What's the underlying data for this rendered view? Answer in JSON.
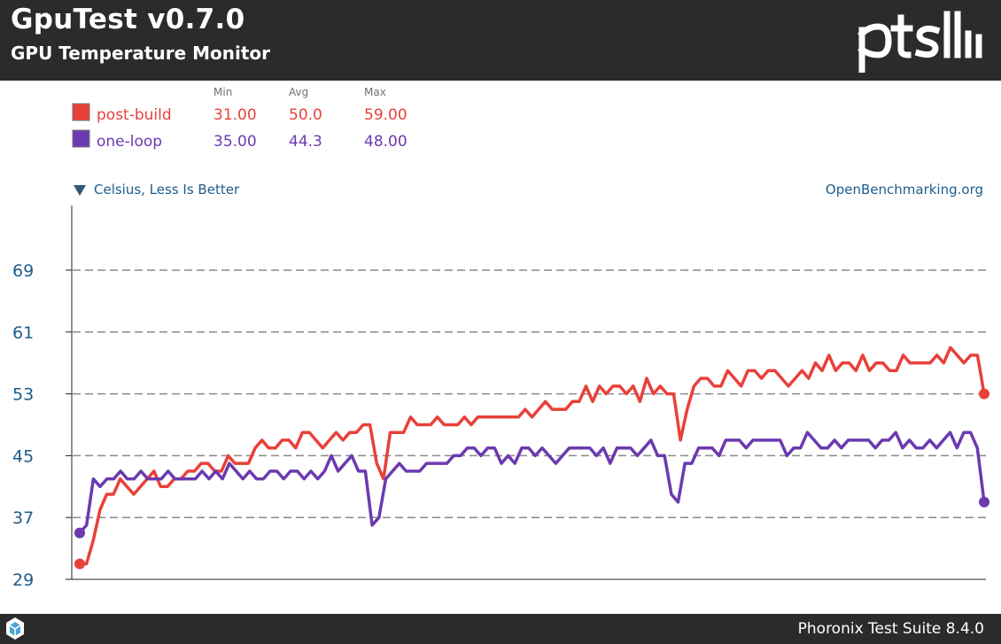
{
  "header": {
    "title": "GpuTest v0.7.0",
    "subtitle": "GPU Temperature Monitor",
    "logo_text": "ptsh"
  },
  "footer": {
    "text": "Phoronix Test Suite 8.4.0"
  },
  "legend": {
    "columns": [
      "Min",
      "Avg",
      "Max"
    ],
    "rows": [
      {
        "name": "post-build",
        "color": "#e8413a",
        "min": "31.00",
        "avg": "50.0",
        "max": "59.00"
      },
      {
        "name": "one-loop",
        "color": "#6b3aaf",
        "min": "35.00",
        "avg": "44.3",
        "max": "48.00"
      }
    ]
  },
  "chart_data": {
    "type": "line",
    "ylabel": "Celsius, Less Is Better",
    "source": "OpenBenchmarking.org",
    "yticks": [
      29,
      37,
      45,
      53,
      61,
      69
    ],
    "ylim": [
      29,
      69
    ],
    "grid": true,
    "legend_position": "top-left",
    "series": [
      {
        "name": "post-build",
        "color": "#e8413a",
        "values": [
          31,
          31,
          34,
          38,
          40,
          40,
          42,
          41,
          40,
          41,
          42,
          43,
          41,
          41,
          42,
          42,
          43,
          43,
          44,
          44,
          43,
          43,
          45,
          44,
          44,
          44,
          46,
          47,
          46,
          46,
          47,
          47,
          46,
          48,
          48,
          47,
          46,
          47,
          48,
          47,
          48,
          48,
          49,
          49,
          44,
          42,
          48,
          48,
          48,
          50,
          49,
          49,
          49,
          50,
          49,
          49,
          49,
          50,
          49,
          50,
          50,
          50,
          50,
          50,
          50,
          50,
          51,
          50,
          51,
          52,
          51,
          51,
          51,
          52,
          52,
          54,
          52,
          54,
          53,
          54,
          54,
          53,
          54,
          52,
          55,
          53,
          54,
          53,
          53,
          47,
          51,
          54,
          55,
          55,
          54,
          54,
          56,
          55,
          54,
          56,
          56,
          55,
          56,
          56,
          55,
          54,
          55,
          56,
          55,
          57,
          56,
          58,
          56,
          57,
          57,
          56,
          58,
          56,
          57,
          57,
          56,
          56,
          58,
          57,
          57,
          57,
          57,
          58,
          57,
          59,
          58,
          57,
          58,
          58,
          53
        ]
      },
      {
        "name": "one-loop",
        "color": "#6b3aaf",
        "values": [
          35,
          36,
          42,
          41,
          42,
          42,
          43,
          42,
          42,
          43,
          42,
          42,
          42,
          43,
          42,
          42,
          42,
          42,
          43,
          42,
          43,
          42,
          44,
          43,
          42,
          43,
          42,
          42,
          43,
          43,
          42,
          43,
          43,
          42,
          43,
          42,
          43,
          45,
          43,
          44,
          45,
          43,
          43,
          36,
          37,
          42,
          43,
          44,
          43,
          43,
          43,
          44,
          44,
          44,
          44,
          45,
          45,
          46,
          46,
          45,
          46,
          46,
          44,
          45,
          44,
          46,
          46,
          45,
          46,
          45,
          44,
          45,
          46,
          46,
          46,
          46,
          45,
          46,
          44,
          46,
          46,
          46,
          45,
          46,
          47,
          45,
          45,
          40,
          39,
          44,
          44,
          46,
          46,
          46,
          45,
          47,
          47,
          47,
          46,
          47,
          47,
          47,
          47,
          47,
          45,
          46,
          46,
          48,
          47,
          46,
          46,
          47,
          46,
          47,
          47,
          47,
          47,
          46,
          47,
          47,
          48,
          46,
          47,
          46,
          46,
          47,
          46,
          47,
          48,
          46,
          48,
          48,
          46,
          39
        ]
      }
    ]
  }
}
